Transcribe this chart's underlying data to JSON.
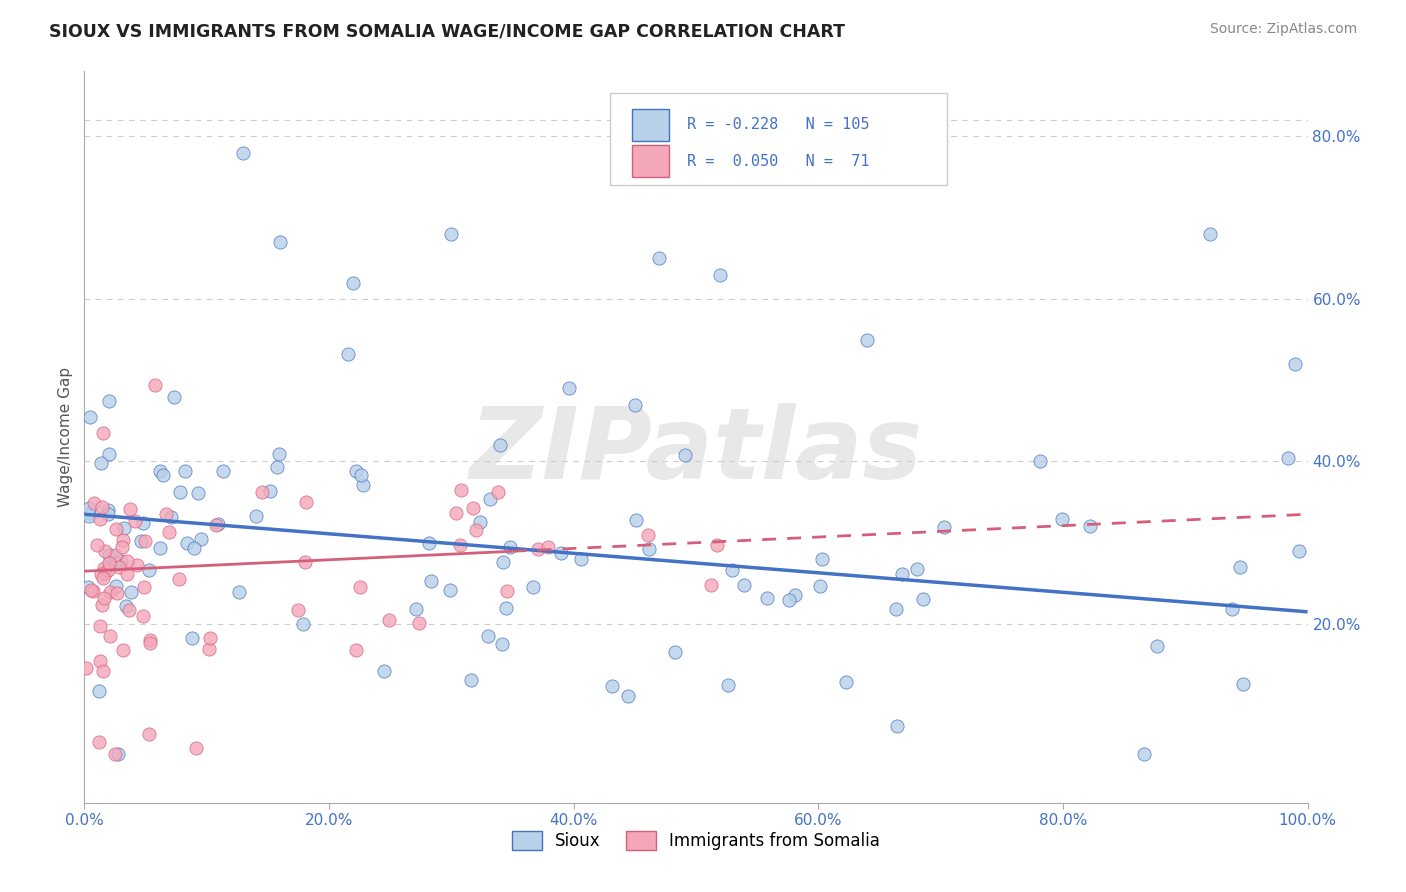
{
  "title": "SIOUX VS IMMIGRANTS FROM SOMALIA WAGE/INCOME GAP CORRELATION CHART",
  "source": "Source: ZipAtlas.com",
  "ylabel": "Wage/Income Gap",
  "xlim": [
    0.0,
    1.0
  ],
  "ylim": [
    -0.02,
    0.88
  ],
  "xtick_labels": [
    "0.0%",
    "20.0%",
    "40.0%",
    "60.0%",
    "80.0%",
    "100.0%"
  ],
  "xtick_positions": [
    0.0,
    0.2,
    0.4,
    0.6,
    0.8,
    1.0
  ],
  "ytick_labels": [
    "20.0%",
    "40.0%",
    "60.0%",
    "80.0%"
  ],
  "ytick_positions": [
    0.2,
    0.4,
    0.6,
    0.8
  ],
  "color_sioux": "#b8d0e8",
  "color_somalia": "#f4a7b9",
  "color_sioux_line": "#4472C4",
  "color_somalia_line": "#d45f7a",
  "color_text_blue": "#4472C4",
  "background_color": "#ffffff",
  "grid_color": "#cccccc",
  "watermark_text": "ZIPatlas",
  "sioux_line_start_y": 0.335,
  "sioux_line_end_y": 0.215,
  "somalia_line_start_y": 0.265,
  "somalia_line_end_y": 0.335
}
